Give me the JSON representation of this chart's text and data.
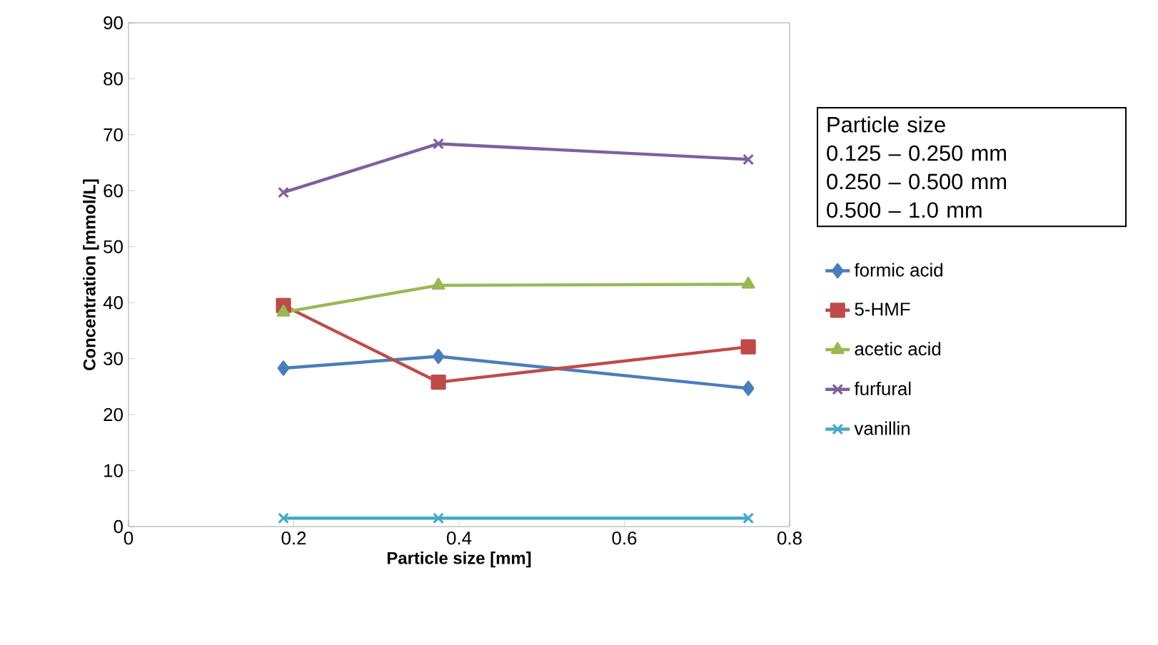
{
  "chart_data": {
    "type": "line",
    "xlabel": "Particle size [mm]",
    "ylabel": "Concentration [mmol/L]",
    "x": [
      0.1875,
      0.375,
      0.75
    ],
    "series": [
      {
        "name": "formic acid",
        "color": "#4a7ebb",
        "marker": "diamond",
        "values": [
          28.3,
          30.4,
          24.7
        ]
      },
      {
        "name": "5-HMF",
        "color": "#be4b48",
        "marker": "square",
        "values": [
          39.5,
          25.8,
          32.1
        ]
      },
      {
        "name": "acetic acid",
        "color": "#98b954",
        "marker": "triangle",
        "values": [
          38.3,
          43.1,
          43.3
        ]
      },
      {
        "name": "furfural",
        "color": "#7d60a0",
        "marker": "cross",
        "values": [
          59.7,
          68.4,
          65.6
        ]
      },
      {
        "name": "vanillin",
        "color": "#46aac5",
        "marker": "cross",
        "values": [
          1.5,
          1.5,
          1.5
        ]
      }
    ],
    "xlim": [
      0,
      0.8
    ],
    "xticks": [
      0,
      0.2,
      0.4,
      0.6,
      0.8
    ],
    "ylim": [
      0,
      90
    ],
    "yticks": [
      0,
      10,
      20,
      30,
      40,
      50,
      60,
      70,
      80,
      90
    ],
    "grid": false,
    "legend": "right",
    "line_style": "solid",
    "annotations": [
      "Particle size",
      "0.125 – 0.250 mm",
      "0.250 – 0.500 mm",
      "0.500 – 1.0 mm"
    ]
  }
}
